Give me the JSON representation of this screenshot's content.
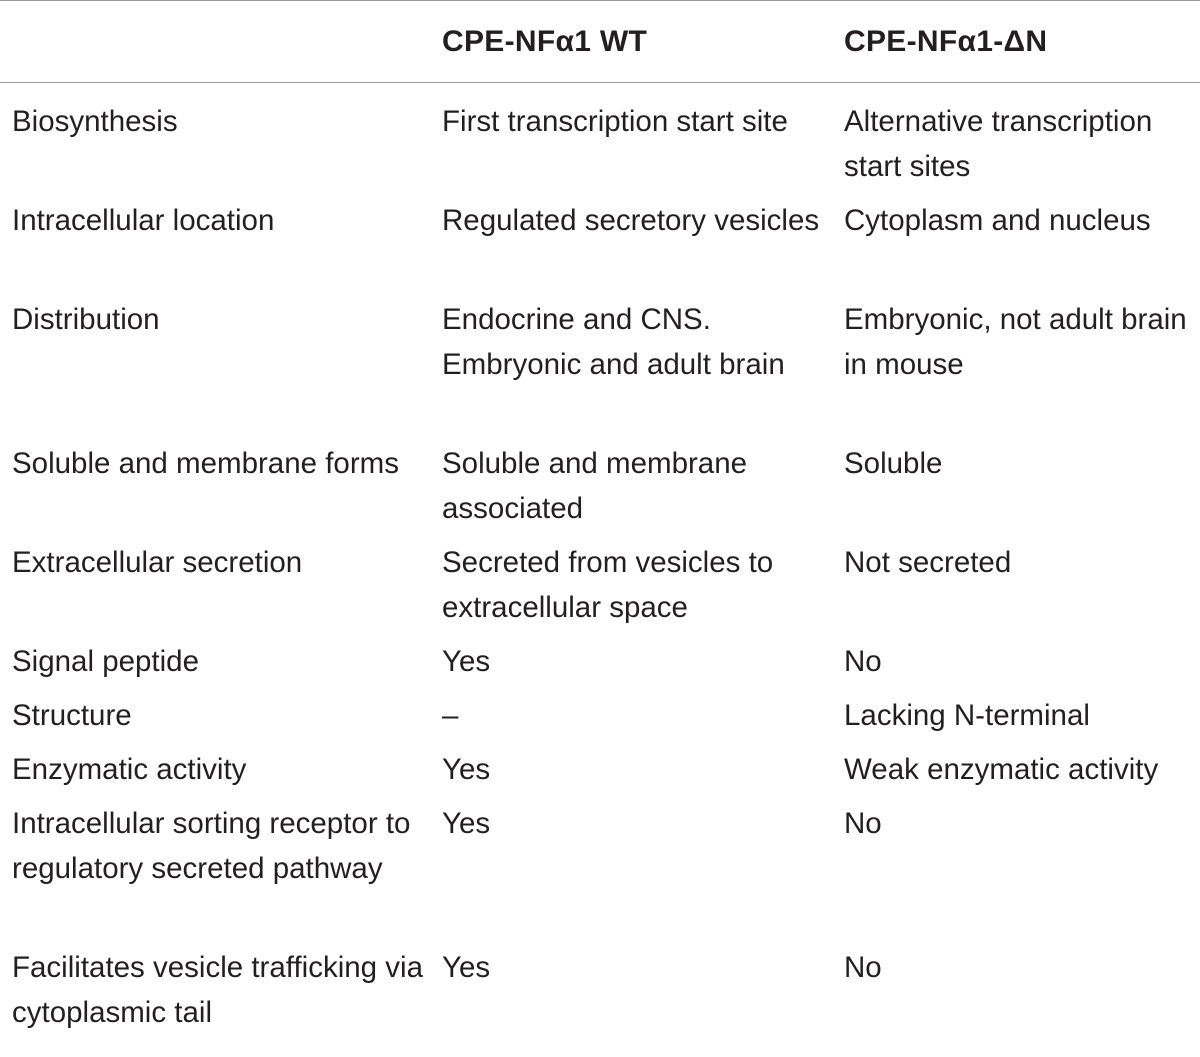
{
  "table": {
    "headers": [
      "",
      "CPE-NFα1 WT",
      "CPE-NFα1-ΔN"
    ],
    "rows": [
      [
        "Biosynthesis",
        "First transcription start site",
        "Alternative transcription start sites"
      ],
      [
        "Intracellular location",
        "Regulated secretory vesicles",
        "Cytoplasm and nucleus"
      ],
      [
        "Distribution",
        "Endocrine and CNS. Embryonic and adult brain",
        "Embryonic, not adult brain in mouse"
      ],
      [
        "Soluble and membrane forms",
        "Soluble and membrane associated",
        "Soluble"
      ],
      [
        "Extracellular secretion",
        "Secreted from vesicles to extracellular space",
        "Not secreted"
      ],
      [
        "Signal peptide",
        "Yes",
        "No"
      ],
      [
        "Structure",
        "–",
        "Lacking N-terminal"
      ],
      [
        "Enzymatic activity",
        "Yes",
        "Weak enzymatic activity"
      ],
      [
        "Intracellular sorting receptor to regulatory secreted pathway",
        "Yes",
        "No"
      ],
      [
        "Facilitates vesicle trafficking via cytoplasmic tail",
        "Yes",
        "No"
      ]
    ]
  }
}
